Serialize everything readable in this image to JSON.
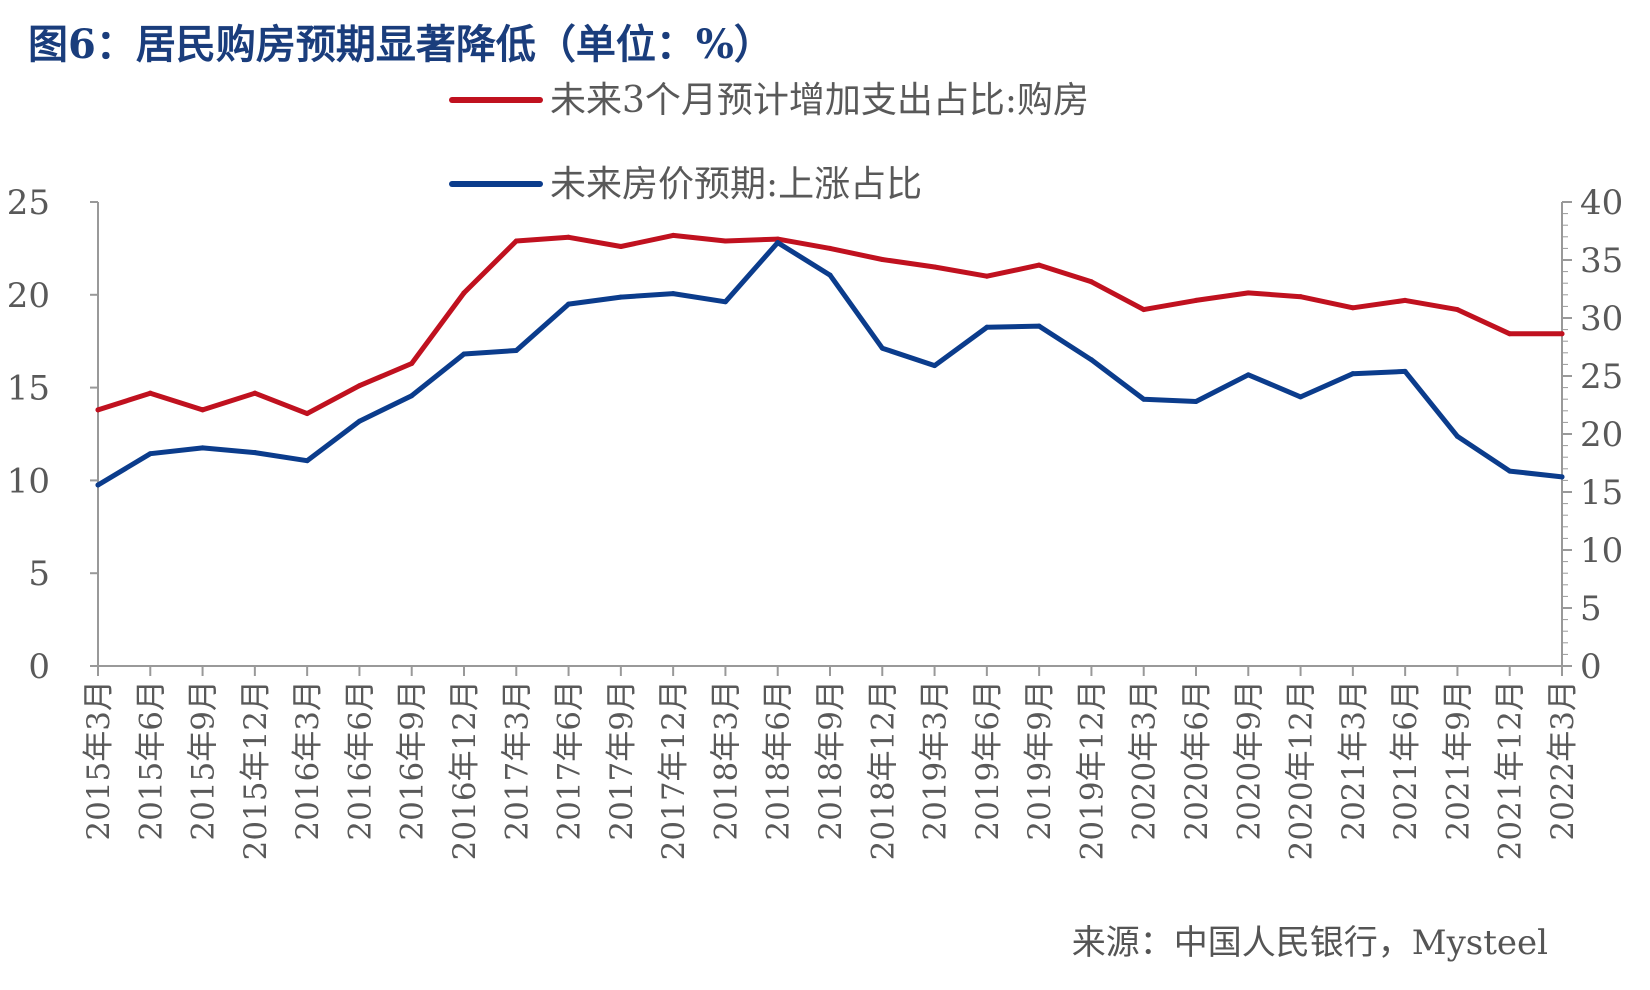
{
  "title": "图6：居民购房预期显著降低（单位：%）",
  "source": "来源：中国人民银行，Mysteel",
  "chart_data": {
    "type": "line",
    "title": "图6：居民购房预期显著降低（单位：%）",
    "categories": [
      "2015年3月",
      "2015年6月",
      "2015年9月",
      "2015年12月",
      "2016年3月",
      "2016年6月",
      "2016年9月",
      "2016年12月",
      "2017年3月",
      "2017年6月",
      "2017年9月",
      "2017年12月",
      "2018年3月",
      "2018年6月",
      "2018年9月",
      "2018年12月",
      "2019年3月",
      "2019年6月",
      "2019年9月",
      "2019年12月",
      "2020年3月",
      "2020年6月",
      "2020年9月",
      "2020年12月",
      "2021年3月",
      "2021年6月",
      "2021年9月",
      "2021年12月",
      "2022年3月"
    ],
    "left_axis": {
      "ylim": [
        0,
        25
      ],
      "ticks": [
        0,
        5,
        10,
        15,
        20,
        25
      ]
    },
    "right_axis": {
      "ylim": [
        0,
        40
      ],
      "ticks": [
        0,
        5,
        10,
        15,
        20,
        25,
        30,
        35,
        40
      ]
    },
    "series": [
      {
        "name": "未来3个月预计增加支出占比:购房",
        "axis": "left",
        "color": "#c0111f",
        "values": [
          13.8,
          14.7,
          13.8,
          14.7,
          13.6,
          15.1,
          16.3,
          20.1,
          22.9,
          23.1,
          22.6,
          23.2,
          22.9,
          23.0,
          22.5,
          21.9,
          21.5,
          21.0,
          21.6,
          20.7,
          19.2,
          19.7,
          20.1,
          19.9,
          19.3,
          19.7,
          19.2,
          17.9,
          17.9
        ]
      },
      {
        "name": "未来房价预期:上涨占比",
        "axis": "right",
        "color": "#0b3c8c",
        "values": [
          15.6,
          18.3,
          18.8,
          18.4,
          17.7,
          21.1,
          23.3,
          26.9,
          27.2,
          31.2,
          31.8,
          32.1,
          31.4,
          36.5,
          33.7,
          27.4,
          25.9,
          29.2,
          29.3,
          26.4,
          23.0,
          22.8,
          25.1,
          23.2,
          25.2,
          25.4,
          19.8,
          16.8,
          16.3
        ]
      }
    ],
    "legend_position": "top"
  }
}
